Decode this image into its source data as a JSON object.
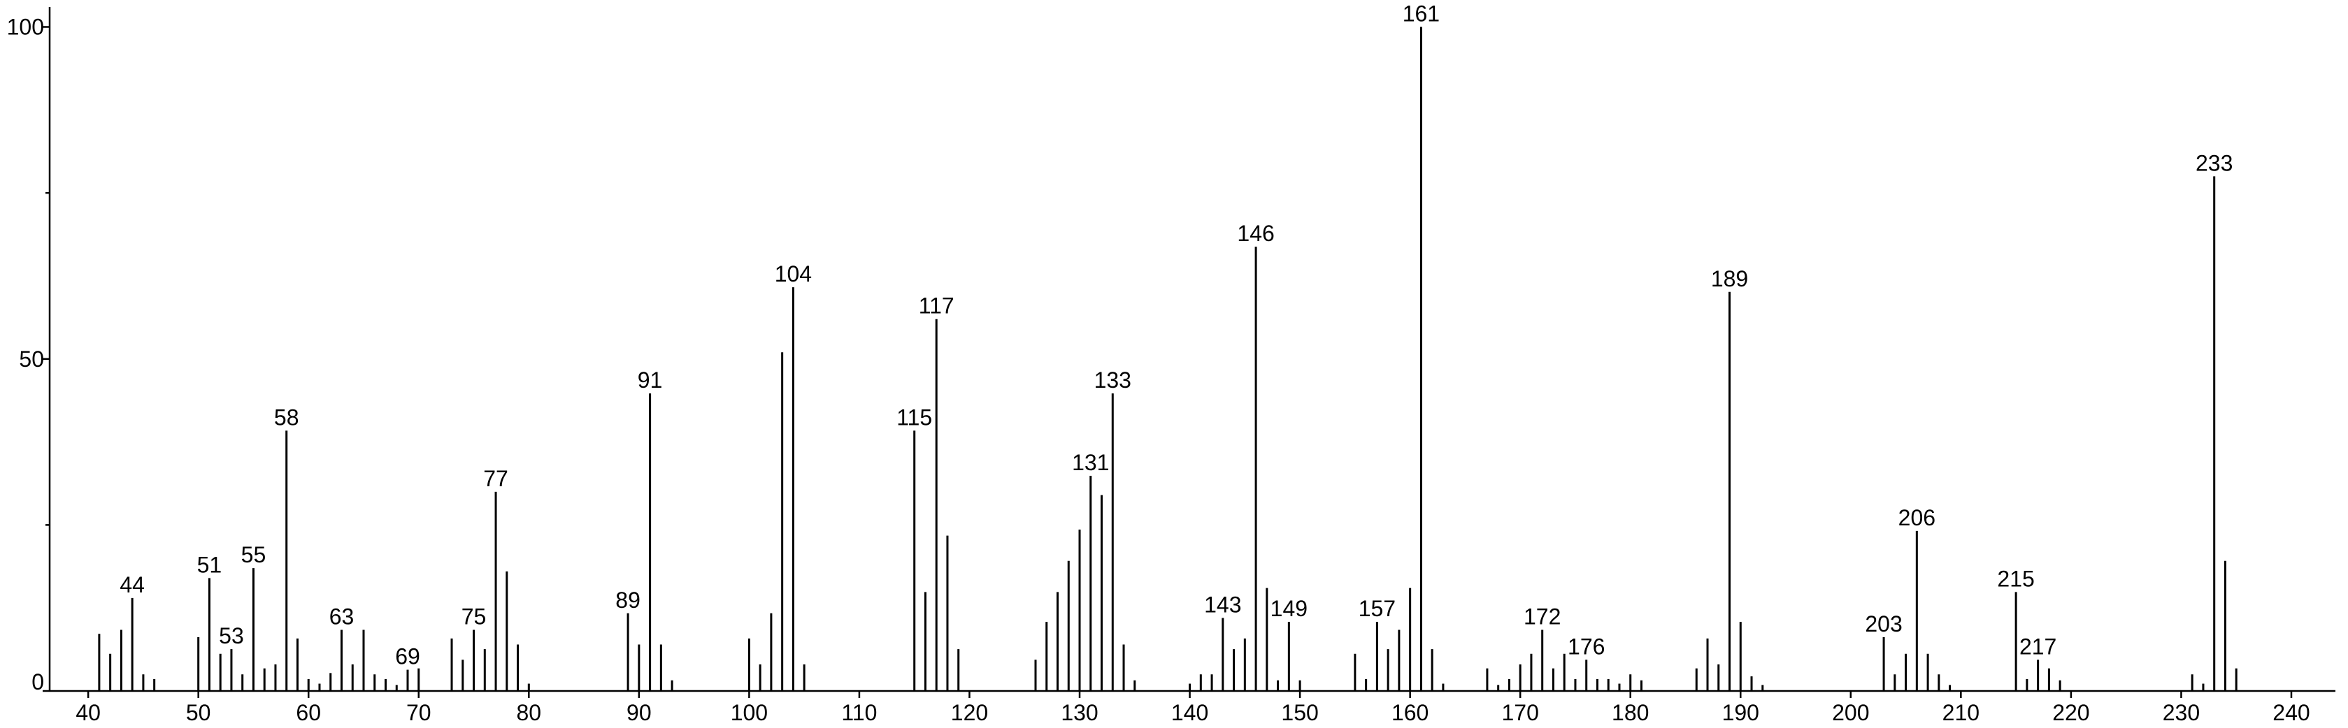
{
  "chart_data": {
    "type": "stem",
    "color": "#000000",
    "x": [
      41,
      42,
      43,
      44,
      45,
      46,
      50,
      51,
      52,
      53,
      54,
      55,
      56,
      57,
      58,
      59,
      60,
      61,
      62,
      63,
      64,
      65,
      66,
      67,
      68,
      69,
      70,
      73,
      74,
      75,
      76,
      77,
      78,
      79,
      80,
      89,
      90,
      91,
      92,
      93,
      100,
      101,
      102,
      103,
      104,
      105,
      115,
      116,
      117,
      118,
      119,
      126,
      127,
      128,
      129,
      130,
      131,
      132,
      133,
      134,
      135,
      140,
      141,
      142,
      143,
      144,
      145,
      146,
      147,
      148,
      149,
      150,
      155,
      156,
      157,
      158,
      159,
      160,
      161,
      162,
      163,
      167,
      168,
      169,
      170,
      171,
      172,
      173,
      174,
      175,
      176,
      177,
      178,
      179,
      180,
      181,
      186,
      187,
      188,
      189,
      190,
      191,
      192,
      203,
      204,
      205,
      206,
      207,
      208,
      209,
      215,
      216,
      217,
      218,
      219,
      231,
      232,
      233,
      234,
      235
    ],
    "values": [
      8.6,
      5.6,
      9.2,
      14,
      2.5,
      1.8,
      8.1,
      17,
      5.6,
      6.3,
      2.5,
      18.5,
      3.4,
      4,
      39.2,
      7.9,
      1.8,
      1.1,
      2.7,
      9.2,
      4,
      9.2,
      2.5,
      1.8,
      0.9,
      3.2,
      3.4,
      7.9,
      4.7,
      9.2,
      6.3,
      30,
      18,
      7,
      1.1,
      11.7,
      7,
      44.8,
      7,
      1.6,
      7.9,
      4,
      11.7,
      51,
      60.8,
      4,
      39.2,
      14.9,
      56,
      23.4,
      6.3,
      4.7,
      10.4,
      14.9,
      19.6,
      24.3,
      32.4,
      29.5,
      44.8,
      7,
      1.6,
      1.1,
      2.5,
      2.5,
      11,
      6.3,
      7.9,
      66.9,
      15.5,
      1.6,
      10.4,
      1.6,
      5.6,
      1.8,
      10.4,
      6.3,
      9.2,
      15.5,
      100,
      6.3,
      1.1,
      3.4,
      0.9,
      1.8,
      4,
      5.6,
      9.2,
      3.4,
      5.6,
      1.8,
      4.7,
      1.8,
      1.8,
      1.1,
      2.5,
      1.6,
      3.4,
      7.9,
      4,
      60.1,
      10.4,
      2.2,
      0.9,
      8.1,
      2.5,
      5.6,
      24.1,
      5.6,
      2.5,
      0.9,
      14.9,
      1.8,
      4.7,
      3.4,
      1.6,
      2.5,
      1.1,
      77.5,
      19.6,
      3.4
    ],
    "peak_labels": [
      44,
      51,
      53,
      55,
      58,
      63,
      69,
      75,
      77,
      89,
      91,
      104,
      115,
      117,
      131,
      133,
      143,
      146,
      149,
      157,
      161,
      172,
      176,
      189,
      203,
      206,
      215,
      217,
      233
    ],
    "xlim": [
      36.5,
      244
    ],
    "xticks": [
      40,
      50,
      60,
      70,
      80,
      90,
      100,
      110,
      120,
      130,
      140,
      150,
      160,
      170,
      180,
      190,
      200,
      210,
      220,
      230,
      240
    ],
    "ylim": [
      0,
      103
    ],
    "yticks": [
      0,
      50,
      100
    ],
    "y_minor_ticks": [
      25,
      75
    ]
  }
}
